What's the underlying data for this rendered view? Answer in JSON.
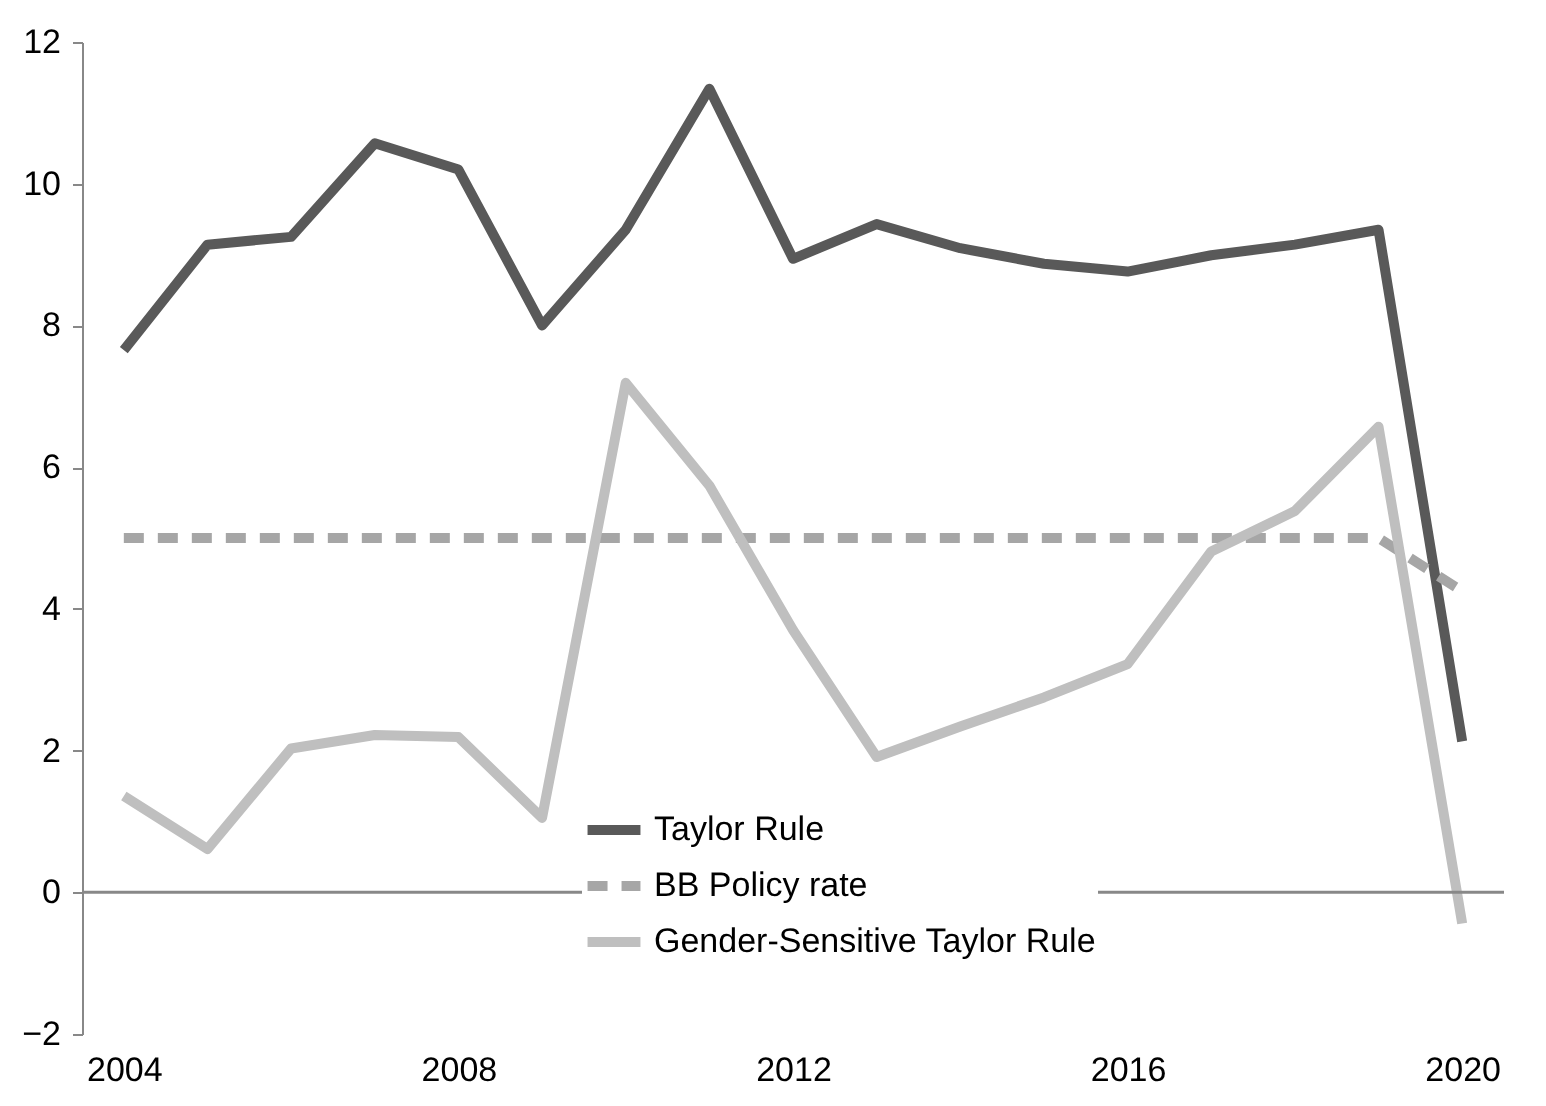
{
  "chart_data": {
    "type": "line",
    "categories": [
      "2004",
      null,
      null,
      null,
      "2008",
      null,
      null,
      null,
      "2012",
      null,
      null,
      null,
      "2016",
      null,
      null,
      null,
      "2020"
    ],
    "series": [
      {
        "name": "Taylor Rule",
        "color": "#595959",
        "line_style": "solid",
        "values": [
          7.65,
          9.14,
          9.25,
          10.57,
          10.2,
          8.0,
          9.35,
          11.34,
          8.94,
          9.43,
          9.09,
          8.87,
          8.76,
          8.99,
          9.14,
          9.35,
          2.13
        ]
      },
      {
        "name": "BB Policy rate",
        "color": "#a6a6a6",
        "line_style": "dashed",
        "values": [
          5,
          5,
          5,
          5,
          5,
          5,
          5,
          5,
          5,
          5,
          5,
          5,
          5,
          5,
          5,
          5,
          4.25
        ]
      },
      {
        "name": "Gender-Sensitive Taylor Rule",
        "color": "#bfbfbf",
        "line_style": "solid",
        "values": [
          1.36,
          0.61,
          2.03,
          2.22,
          2.19,
          1.05,
          7.19,
          5.74,
          3.7,
          1.91,
          2.34,
          2.75,
          3.22,
          4.81,
          5.38,
          6.57,
          -0.44
        ]
      }
    ],
    "ylim": [
      -2,
      12
    ],
    "yticks": [
      -2,
      0,
      2,
      4,
      6,
      8,
      10,
      12
    ],
    "ref_lines": [
      {
        "axis": "y",
        "value": 0,
        "color": "#888888"
      }
    ],
    "grid": false,
    "legend": "bottom",
    "marker": "none"
  }
}
